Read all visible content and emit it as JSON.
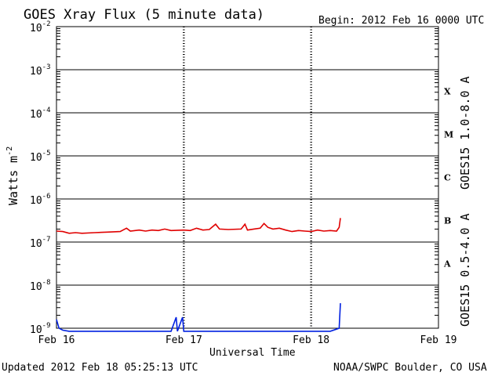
{
  "chart_data": {
    "type": "line",
    "title": "GOES Xray Flux (5 minute data)",
    "begin_label": "Begin:  2012 Feb 16 0000 UTC",
    "xlabel": "Universal Time",
    "ylabel": "Watts m",
    "ylabel_sup": "-2",
    "x_ticks": [
      "Feb 16",
      "Feb 17",
      "Feb 18",
      "Feb 19"
    ],
    "x_range_days": [
      0,
      3
    ],
    "y_scale": "log",
    "ylim": [
      1e-09,
      0.01
    ],
    "y_ticks": [
      {
        "base": "10",
        "exp": "-2"
      },
      {
        "base": "10",
        "exp": "-3"
      },
      {
        "base": "10",
        "exp": "-4"
      },
      {
        "base": "10",
        "exp": "-5"
      },
      {
        "base": "10",
        "exp": "-6"
      },
      {
        "base": "10",
        "exp": "-7"
      },
      {
        "base": "10",
        "exp": "-8"
      },
      {
        "base": "10",
        "exp": "-9"
      }
    ],
    "flare_classes": [
      "X",
      "M",
      "C",
      "B",
      "A"
    ],
    "series": [
      {
        "name": "GOES15 1.0-8.0 A",
        "color": "#e00000",
        "points": [
          [
            0.0,
            1.8e-07
          ],
          [
            0.05,
            1.75e-07
          ],
          [
            0.1,
            1.6e-07
          ],
          [
            0.15,
            1.65e-07
          ],
          [
            0.2,
            1.6e-07
          ],
          [
            0.3,
            1.65e-07
          ],
          [
            0.4,
            1.7e-07
          ],
          [
            0.5,
            1.75e-07
          ],
          [
            0.55,
            2.1e-07
          ],
          [
            0.58,
            1.8e-07
          ],
          [
            0.65,
            1.9e-07
          ],
          [
            0.7,
            1.8e-07
          ],
          [
            0.75,
            1.9e-07
          ],
          [
            0.8,
            1.85e-07
          ],
          [
            0.85,
            2e-07
          ],
          [
            0.9,
            1.85e-07
          ],
          [
            1.0,
            1.9e-07
          ],
          [
            1.05,
            1.85e-07
          ],
          [
            1.1,
            2.1e-07
          ],
          [
            1.15,
            1.9e-07
          ],
          [
            1.2,
            1.95e-07
          ],
          [
            1.25,
            2.6e-07
          ],
          [
            1.28,
            2e-07
          ],
          [
            1.35,
            1.95e-07
          ],
          [
            1.45,
            2e-07
          ],
          [
            1.48,
            2.6e-07
          ],
          [
            1.5,
            1.9e-07
          ],
          [
            1.55,
            2e-07
          ],
          [
            1.6,
            2.1e-07
          ],
          [
            1.63,
            2.7e-07
          ],
          [
            1.66,
            2.2e-07
          ],
          [
            1.7,
            2e-07
          ],
          [
            1.75,
            2.1e-07
          ],
          [
            1.8,
            1.9e-07
          ],
          [
            1.85,
            1.75e-07
          ],
          [
            1.9,
            1.85e-07
          ],
          [
            1.95,
            1.8e-07
          ],
          [
            2.0,
            1.75e-07
          ],
          [
            2.05,
            1.9e-07
          ],
          [
            2.1,
            1.8e-07
          ],
          [
            2.15,
            1.85e-07
          ],
          [
            2.2,
            1.8e-07
          ],
          [
            2.22,
            2.2e-07
          ],
          [
            2.23,
            3.6e-07
          ]
        ]
      },
      {
        "name": "GOES15 0.5-4.0 A",
        "color": "#0020e0",
        "points": [
          [
            0.0,
            1.6e-09
          ],
          [
            0.02,
            1e-09
          ],
          [
            0.05,
            9e-10
          ],
          [
            0.1,
            8.5e-10
          ],
          [
            0.2,
            8.5e-10
          ],
          [
            0.3,
            8.5e-10
          ],
          [
            0.5,
            8.5e-10
          ],
          [
            0.7,
            8.5e-10
          ],
          [
            0.9,
            8.5e-10
          ],
          [
            0.94,
            1.8e-09
          ],
          [
            0.95,
            8.5e-10
          ],
          [
            0.99,
            1.8e-09
          ],
          [
            1.0,
            8.5e-10
          ],
          [
            1.2,
            8.5e-10
          ],
          [
            1.4,
            8.5e-10
          ],
          [
            1.6,
            8.5e-10
          ],
          [
            1.8,
            8.5e-10
          ],
          [
            2.0,
            8.5e-10
          ],
          [
            2.1,
            8.5e-10
          ],
          [
            2.15,
            8.5e-10
          ],
          [
            2.22,
            1e-09
          ],
          [
            2.23,
            3.8e-09
          ]
        ]
      }
    ]
  },
  "footer": {
    "updated": "Updated 2012 Feb 18 05:25:13 UTC",
    "credit": "NOAA/SWPC Boulder, CO USA"
  }
}
